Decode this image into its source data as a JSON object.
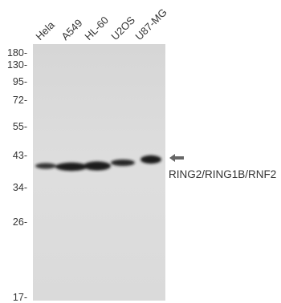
{
  "lanes": [
    "Hela",
    "A549",
    "HL-60",
    "U2OS",
    "U87-MG"
  ],
  "markers": [
    {
      "label": "180-"
    },
    {
      "label": "130-"
    },
    {
      "label": "95-"
    },
    {
      "label": "72-"
    },
    {
      "label": "55-"
    },
    {
      "label": "43-"
    },
    {
      "label": "34-"
    },
    {
      "label": "26-"
    },
    {
      "label": "17-"
    }
  ],
  "target": {
    "label": "RING2/RING1B/RNF2",
    "arrow_icon": "arrow-left-icon"
  },
  "colors": {
    "membrane": "#dcdcdc",
    "band": "#1a1a1a",
    "arrow": "#666666"
  }
}
